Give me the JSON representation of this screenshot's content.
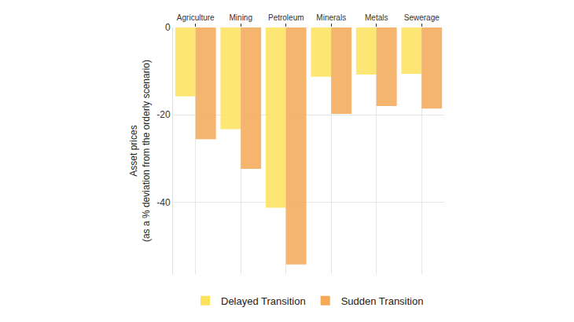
{
  "chart_data": {
    "type": "bar",
    "categories": [
      "Agriculture",
      "Mining",
      "Petroleum",
      "Minerals",
      "Metals",
      "Sewerage"
    ],
    "series": [
      {
        "name": "Delayed Transition",
        "color": "#FDE25B",
        "values": [
          -15.8,
          -23.3,
          -41.3,
          -11.3,
          -10.8,
          -10.6
        ]
      },
      {
        "name": "Sudden Transition",
        "color": "#F5A855",
        "values": [
          -25.6,
          -32.4,
          -54.3,
          -19.8,
          -18.0,
          -18.6
        ]
      }
    ],
    "y_label": "Asset prices\n(as a % deviation from the orderly scenario)",
    "ylim": [
      -56.5,
      0
    ],
    "yticks": [
      0,
      -20,
      -40
    ],
    "grid": true,
    "legend": "bottom"
  }
}
